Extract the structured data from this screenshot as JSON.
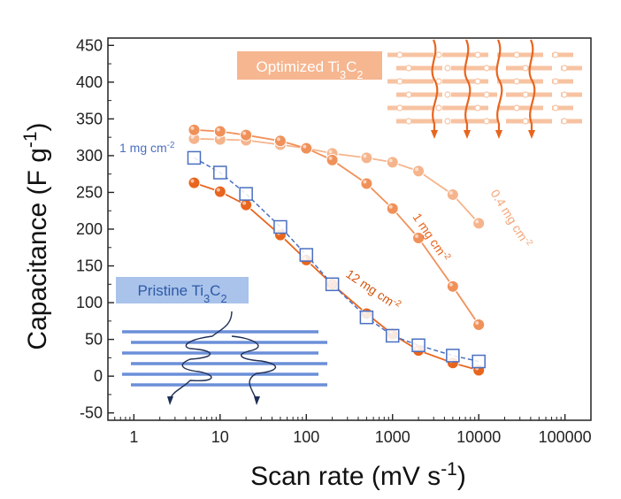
{
  "chart_data": {
    "type": "scatter",
    "xlabel": "Scan rate (mV s⁻¹)",
    "ylabel": "Capacitance (F g⁻¹)",
    "xscale": "log",
    "xlim": [
      0.5,
      200000
    ],
    "ylim": [
      -60,
      460
    ],
    "x_ticks": [
      1,
      10,
      100,
      1000,
      10000,
      100000
    ],
    "x_tick_labels": [
      "1",
      "10",
      "100",
      "1000",
      "10000",
      "100000"
    ],
    "y_ticks": [
      -50,
      0,
      50,
      100,
      150,
      200,
      250,
      300,
      350,
      400,
      450
    ],
    "grid": false,
    "x": [
      5,
      10,
      20,
      50,
      100,
      200,
      500,
      1000,
      2000,
      5000,
      10000
    ],
    "series": [
      {
        "name": "0.4 mg cm⁻²",
        "group": "Optimized",
        "marker": "circle",
        "color": "#f5b48c",
        "values": [
          323,
          322,
          321,
          315,
          310,
          303,
          297,
          291,
          279,
          247,
          208
        ]
      },
      {
        "name": "1 mg cm⁻²",
        "group": "Optimized",
        "marker": "circle",
        "color": "#f0915a",
        "values": [
          335,
          333,
          328,
          320,
          310,
          294,
          262,
          228,
          188,
          122,
          70
        ]
      },
      {
        "name": "12 mg cm⁻²",
        "group": "Optimized",
        "marker": "circle",
        "color": "#e8651e",
        "values": [
          263,
          251,
          233,
          192,
          158,
          125,
          85,
          57,
          35,
          18,
          8
        ]
      },
      {
        "name": "1 mg cm⁻²",
        "group": "Pristine",
        "marker": "open-square",
        "color": "#4a6fc0",
        "values": [
          297,
          277,
          248,
          203,
          165,
          125,
          80,
          55,
          42,
          28,
          20
        ]
      }
    ],
    "annotations": {
      "optimized_label": "Optimized Ti₃C₂",
      "pristine_label": "Pristine Ti₃C₂"
    }
  },
  "colors": {
    "optimized_box": "#f6b690",
    "optimized_text": "#e8651e",
    "pristine_box": "#a9c3ea",
    "pristine_text": "#2f5aa8",
    "flake_orange": "#f7c3a2",
    "arrow_orange": "#e8651e",
    "flake_blue": "#6b8fd8"
  }
}
